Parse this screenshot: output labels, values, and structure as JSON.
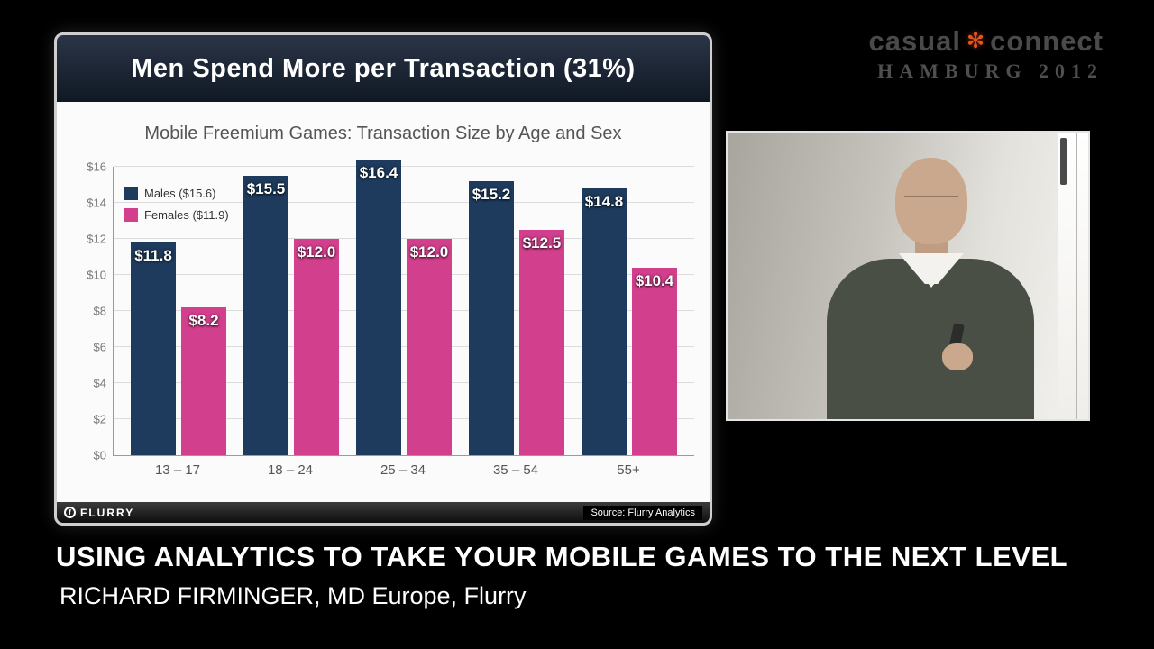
{
  "branding": {
    "word_left": "casual",
    "word_right": "connect",
    "icon": "✻",
    "subtitle": "HAMBURG 2012"
  },
  "slide": {
    "header_title": "Men Spend More per Transaction (31%)",
    "chart_title": "Mobile Freemium Games: Transaction Size by Age and Sex",
    "footer_logo": "FLURRY",
    "footer_logo_initial": "f",
    "source": "Source: Flurry Analytics"
  },
  "chart_data": {
    "type": "bar",
    "title": "Mobile Freemium Games: Transaction Size by Age and Sex",
    "categories": [
      "13 – 17",
      "18 – 24",
      "25 – 34",
      "35 – 54",
      "55+"
    ],
    "series": [
      {
        "name": "Males ($15.6)",
        "color": "#1e3a5c",
        "values": [
          11.8,
          15.5,
          16.4,
          15.2,
          14.8
        ],
        "labels": [
          "$11.8",
          "$15.5",
          "$16.4",
          "$15.2",
          "$14.8"
        ]
      },
      {
        "name": "Females ($11.9)",
        "color": "#d23f8d",
        "values": [
          8.2,
          12.0,
          12.0,
          12.5,
          10.4
        ],
        "labels": [
          "$8.2",
          "$12.0",
          "$12.0",
          "$12.5",
          "$10.4"
        ]
      }
    ],
    "xlabel": "",
    "ylabel": "",
    "ylim": [
      0,
      16
    ],
    "yticks": [
      "$0",
      "$2",
      "$4",
      "$6",
      "$8",
      "$10",
      "$12",
      "$14",
      "$16"
    ],
    "grid": true,
    "legend_position": "top-left"
  },
  "caption": {
    "line1": "USING ANALYTICS TO TAKE YOUR MOBILE GAMES TO THE NEXT LEVEL",
    "line2": "RICHARD FIRMINGER, MD Europe, Flurry"
  }
}
